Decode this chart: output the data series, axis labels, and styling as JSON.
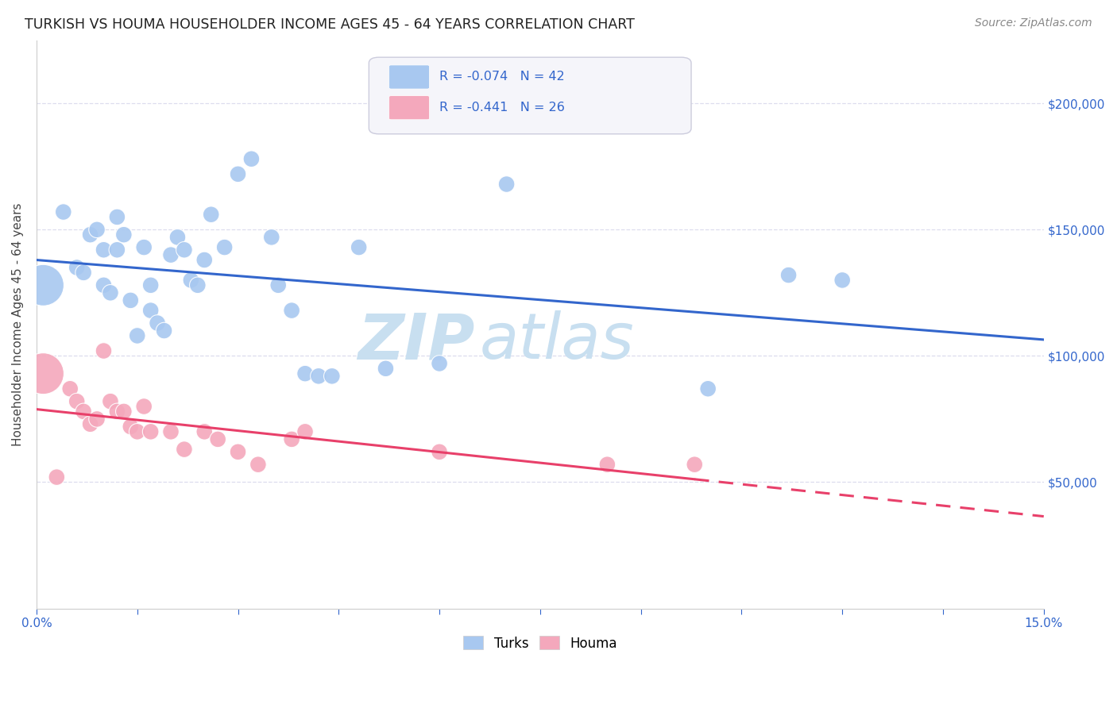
{
  "title": "TURKISH VS HOUMA HOUSEHOLDER INCOME AGES 45 - 64 YEARS CORRELATION CHART",
  "source": "Source: ZipAtlas.com",
  "ylabel_values": [
    50000,
    100000,
    150000,
    200000
  ],
  "xmin": 0.0,
  "xmax": 0.15,
  "ymin": 0,
  "ymax": 225000,
  "turks_R": "-0.074",
  "turks_N": "42",
  "houma_R": "-0.441",
  "houma_N": "26",
  "turks_color": "#a8c8f0",
  "houma_color": "#f4a8bc",
  "trend_turks_color": "#3366cc",
  "trend_houma_color": "#e8406a",
  "watermark_zip": "ZIP",
  "watermark_atlas": "atlas",
  "watermark_color": "#c8dff0",
  "legend_box_color": "#e8e8f0",
  "legend_text_color": "#3366cc",
  "grid_color": "#ddddee",
  "spine_color": "#cccccc",
  "tick_color": "#3366cc",
  "ylabel_label": "Householder Income Ages 45 - 64 years",
  "turks_x": [
    0.001,
    0.004,
    0.006,
    0.007,
    0.008,
    0.009,
    0.01,
    0.01,
    0.011,
    0.012,
    0.012,
    0.013,
    0.014,
    0.015,
    0.016,
    0.017,
    0.017,
    0.018,
    0.019,
    0.02,
    0.021,
    0.022,
    0.023,
    0.024,
    0.025,
    0.026,
    0.028,
    0.03,
    0.032,
    0.035,
    0.036,
    0.038,
    0.04,
    0.042,
    0.044,
    0.048,
    0.052,
    0.06,
    0.07,
    0.1,
    0.112,
    0.12
  ],
  "turks_y": [
    128000,
    157000,
    135000,
    133000,
    148000,
    150000,
    142000,
    128000,
    125000,
    142000,
    155000,
    148000,
    122000,
    108000,
    143000,
    128000,
    118000,
    113000,
    110000,
    140000,
    147000,
    142000,
    130000,
    128000,
    138000,
    156000,
    143000,
    172000,
    178000,
    147000,
    128000,
    118000,
    93000,
    92000,
    92000,
    143000,
    95000,
    97000,
    168000,
    87000,
    132000,
    130000
  ],
  "turks_sizes": [
    200,
    200,
    200,
    200,
    200,
    200,
    200,
    200,
    200,
    200,
    200,
    200,
    200,
    200,
    200,
    200,
    200,
    200,
    200,
    200,
    200,
    200,
    200,
    200,
    200,
    200,
    200,
    200,
    200,
    200,
    200,
    200,
    200,
    200,
    200,
    200,
    200,
    200,
    200,
    200,
    200,
    200
  ],
  "turks_big_idx": 0,
  "houma_x": [
    0.001,
    0.003,
    0.005,
    0.006,
    0.007,
    0.008,
    0.009,
    0.01,
    0.011,
    0.012,
    0.013,
    0.014,
    0.015,
    0.016,
    0.017,
    0.02,
    0.022,
    0.025,
    0.027,
    0.03,
    0.033,
    0.038,
    0.04,
    0.06,
    0.085,
    0.098
  ],
  "houma_y": [
    93000,
    52000,
    87000,
    82000,
    78000,
    73000,
    75000,
    102000,
    82000,
    78000,
    78000,
    72000,
    70000,
    80000,
    70000,
    70000,
    63000,
    70000,
    67000,
    62000,
    57000,
    67000,
    70000,
    62000,
    57000,
    57000
  ],
  "houma_sizes": [
    200,
    200,
    200,
    200,
    200,
    200,
    200,
    200,
    200,
    200,
    200,
    200,
    200,
    200,
    200,
    200,
    200,
    200,
    200,
    200,
    200,
    200,
    200,
    200,
    200,
    200
  ],
  "houma_big_idx": 0
}
